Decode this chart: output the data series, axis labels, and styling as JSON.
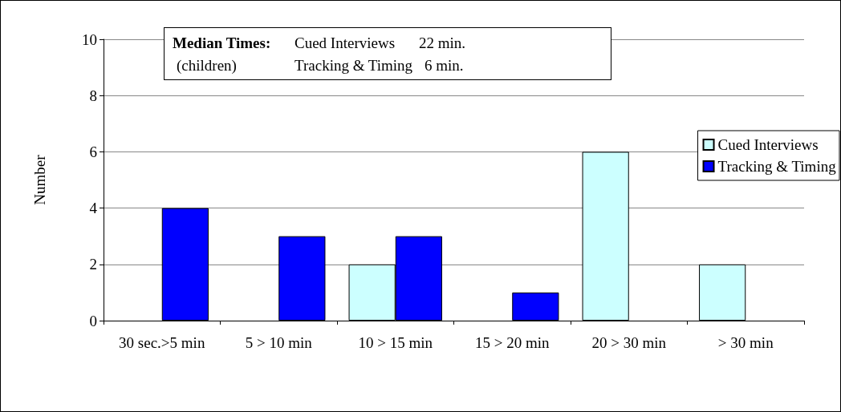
{
  "chart_data": {
    "type": "bar",
    "ylabel": "Number",
    "categories": [
      "30 sec.>5 min",
      "5 > 10 min",
      "10 > 15 min",
      "15 > 20 min",
      "20 > 30 min",
      "> 30 min"
    ],
    "series": [
      {
        "name": "Cued Interviews",
        "color": "#ccffff",
        "values": [
          0,
          0,
          2,
          0,
          6,
          2
        ]
      },
      {
        "name": "Tracking & Timing",
        "color": "#0000ff",
        "values": [
          4,
          3,
          3,
          1,
          0,
          0
        ]
      }
    ],
    "ylim": [
      0,
      10
    ],
    "yticks": [
      0,
      2,
      4,
      6,
      8,
      10
    ],
    "grid": "y",
    "legend": "right",
    "annotations": [
      "Median Times:",
      "Cued Interviews",
      "22 min.",
      "(children)",
      "Tracking & Timing",
      "6 min."
    ]
  }
}
